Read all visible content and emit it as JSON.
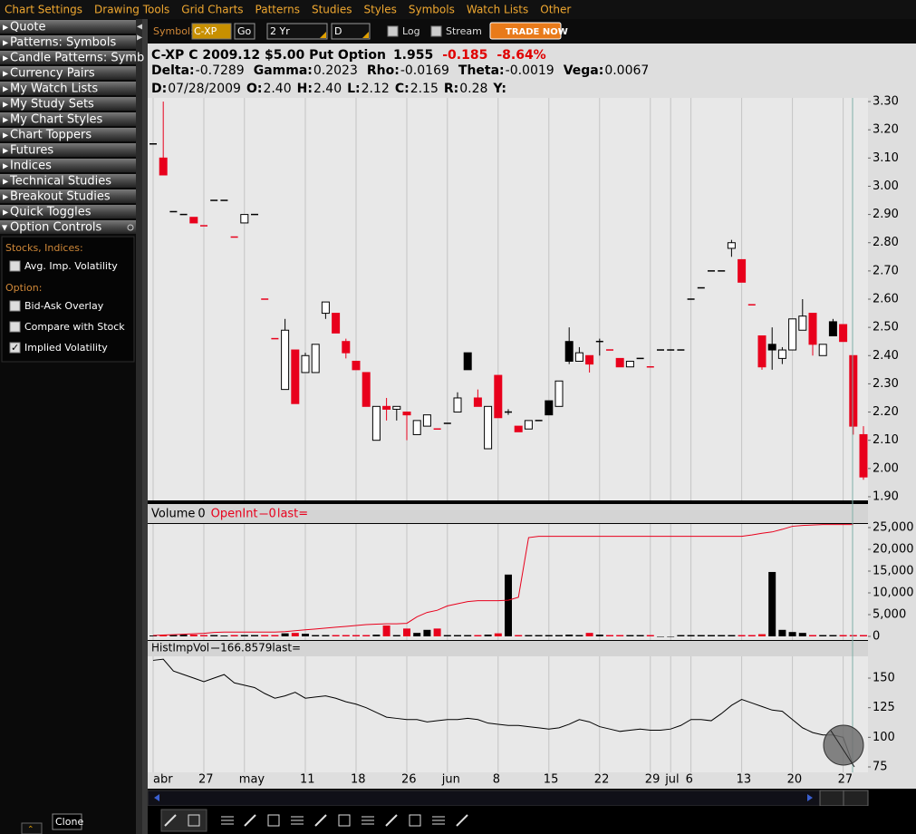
{
  "menu": [
    "Chart Settings",
    "Drawing Tools",
    "Grid Charts",
    "Patterns",
    "Studies",
    "Styles",
    "Symbols",
    "Watch Lists",
    "Other"
  ],
  "sidebar": {
    "items": [
      "Quote",
      "Patterns: Symbols",
      "Candle Patterns: Symb",
      "Currency Pairs",
      "My Watch Lists",
      "My Study Sets",
      "My Chart Styles",
      "Chart Toppers",
      "Futures",
      "Indices",
      "Technical Studies",
      "Breakout Studies",
      "Quick Toggles"
    ],
    "expanded": "Option Controls",
    "sections": [
      {
        "title": "Stocks, Indices:",
        "checks": [
          {
            "label": "Avg. Imp. Volatility",
            "checked": false
          }
        ]
      },
      {
        "title": "Option:",
        "checks": [
          {
            "label": "Bid-Ask Overlay",
            "checked": false
          },
          {
            "label": "Compare with Stock",
            "checked": false
          },
          {
            "label": "Implied Volatility",
            "checked": true
          }
        ]
      }
    ]
  },
  "toolbar": {
    "symbol_label": "Symbol:",
    "symbol": "C-XP",
    "go": "Go",
    "period": "2 Yr",
    "interval": "D",
    "log": "Log",
    "log_checked": false,
    "stream": "Stream",
    "stream_checked": false,
    "trade": "TRADE NOW"
  },
  "quote": {
    "name": "C-XP C 2009.12 $5.00 Put Option",
    "last": "1.955",
    "change": "-0.185",
    "percent": "-8.64%",
    "greeks": [
      {
        "label": "Delta:",
        "value": "-0.7289"
      },
      {
        "label": "Gamma:",
        "value": "0.2023"
      },
      {
        "label": "Rho:",
        "value": "-0.0169"
      },
      {
        "label": "Theta:",
        "value": "-0.0019"
      },
      {
        "label": "Vega:",
        "value": "0.0067"
      }
    ],
    "bar": [
      {
        "label": "D:",
        "value": "07/28/2009"
      },
      {
        "label": "O:",
        "value": "2.40"
      },
      {
        "label": "H:",
        "value": "2.40"
      },
      {
        "label": "L:",
        "value": "2.12"
      },
      {
        "label": "C:",
        "value": "2.15"
      },
      {
        "label": "R:",
        "value": "0.28"
      },
      {
        "label": "Y:"
      }
    ]
  },
  "chart_data": [
    {
      "type": "candlestick",
      "categories": [
        "abr",
        null,
        null,
        null,
        null,
        "27",
        null,
        null,
        null,
        "may",
        null,
        null,
        null,
        null,
        null,
        "11",
        null,
        null,
        null,
        null,
        "18",
        null,
        null,
        null,
        null,
        "26",
        null,
        null,
        null,
        "jun",
        null,
        null,
        null,
        null,
        "8",
        null,
        null,
        null,
        null,
        "15",
        null,
        null,
        null,
        null,
        "22",
        null,
        null,
        null,
        null,
        "29",
        null,
        "jul",
        null,
        "6",
        null,
        null,
        null,
        null,
        "13",
        null,
        null,
        null,
        null,
        "20",
        null,
        null,
        null,
        null,
        "27",
        null,
        null
      ],
      "open": [
        3.15,
        3.1,
        2.91,
        2.9,
        2.89,
        2.86,
        2.95,
        2.95,
        2.82,
        2.87,
        2.9,
        2.6,
        2.46,
        2.28,
        2.42,
        2.34,
        2.34,
        2.55,
        2.55,
        2.45,
        2.38,
        2.34,
        2.1,
        2.22,
        2.21,
        2.2,
        2.12,
        2.15,
        2.14,
        2.16,
        2.2,
        2.35,
        2.25,
        2.07,
        2.33,
        2.2,
        2.15,
        2.14,
        2.17,
        2.19,
        2.22,
        2.38,
        2.38,
        2.4,
        2.45,
        2.42,
        2.39,
        2.36,
        2.39,
        2.36,
        2.42,
        2.42,
        2.42,
        2.6,
        2.64,
        2.7,
        2.7,
        2.78,
        2.74,
        2.58,
        2.47,
        2.42,
        2.39,
        2.42,
        2.49,
        2.55,
        2.4,
        2.47,
        2.51,
        2.4,
        2.12
      ],
      "high": [
        3.15,
        3.3,
        2.91,
        2.9,
        2.89,
        2.86,
        2.95,
        2.95,
        2.82,
        2.9,
        2.9,
        2.6,
        2.46,
        2.53,
        2.42,
        2.41,
        2.44,
        2.59,
        2.55,
        2.46,
        2.38,
        2.34,
        2.22,
        2.25,
        2.22,
        2.2,
        2.17,
        2.19,
        2.14,
        2.16,
        2.27,
        2.41,
        2.28,
        2.22,
        2.33,
        2.21,
        2.15,
        2.17,
        2.17,
        2.24,
        2.31,
        2.5,
        2.43,
        2.4,
        2.46,
        2.42,
        2.39,
        2.38,
        2.39,
        2.36,
        2.42,
        2.42,
        2.42,
        2.6,
        2.64,
        2.7,
        2.7,
        2.81,
        2.74,
        2.58,
        2.47,
        2.5,
        2.43,
        2.53,
        2.6,
        2.55,
        2.44,
        2.53,
        2.51,
        2.4,
        2.15
      ],
      "low": [
        3.15,
        3.04,
        2.91,
        2.9,
        2.87,
        2.86,
        2.95,
        2.95,
        2.82,
        2.87,
        2.9,
        2.6,
        2.46,
        2.28,
        2.23,
        2.34,
        2.34,
        2.53,
        2.48,
        2.39,
        2.35,
        2.22,
        2.1,
        2.17,
        2.17,
        2.1,
        2.12,
        2.15,
        2.14,
        2.16,
        2.2,
        2.35,
        2.22,
        2.07,
        2.18,
        2.19,
        2.13,
        2.14,
        2.17,
        2.19,
        2.22,
        2.37,
        2.38,
        2.34,
        2.4,
        2.42,
        2.36,
        2.36,
        2.39,
        2.36,
        2.42,
        2.42,
        2.42,
        2.6,
        2.64,
        2.7,
        2.7,
        2.75,
        2.66,
        2.58,
        2.35,
        2.35,
        2.37,
        2.42,
        2.49,
        2.4,
        2.4,
        2.47,
        2.45,
        2.12,
        1.96
      ],
      "close": [
        3.15,
        3.04,
        2.91,
        2.9,
        2.87,
        2.86,
        2.95,
        2.95,
        2.82,
        2.9,
        2.9,
        2.6,
        2.46,
        2.49,
        2.23,
        2.4,
        2.44,
        2.59,
        2.48,
        2.41,
        2.35,
        2.22,
        2.22,
        2.21,
        2.22,
        2.19,
        2.17,
        2.19,
        2.14,
        2.16,
        2.25,
        2.41,
        2.22,
        2.22,
        2.18,
        2.2,
        2.13,
        2.17,
        2.17,
        2.24,
        2.31,
        2.45,
        2.41,
        2.37,
        2.45,
        2.42,
        2.36,
        2.38,
        2.39,
        2.36,
        2.42,
        2.42,
        2.42,
        2.6,
        2.64,
        2.7,
        2.7,
        2.8,
        2.66,
        2.58,
        2.36,
        2.44,
        2.42,
        2.53,
        2.54,
        2.44,
        2.44,
        2.52,
        2.45,
        2.15,
        1.97
      ],
      "colors": [
        "#000000",
        "#e8001c",
        "#000000",
        "#000000",
        "#e8001c",
        "#e8001c",
        "#000000",
        "#000000",
        "#e8001c",
        "#ffffff",
        "#000000",
        "#e8001c",
        "#e8001c",
        "#ffffff",
        "#e8001c",
        "#ffffff",
        "#ffffff",
        "#ffffff",
        "#e8001c",
        "#e8001c",
        "#e8001c",
        "#e8001c",
        "#ffffff",
        "#e8001c",
        "#ffffff",
        "#e8001c",
        "#ffffff",
        "#ffffff",
        "#e8001c",
        "#000000",
        "#ffffff",
        "#000000",
        "#e8001c",
        "#ffffff",
        "#e8001c",
        "#000000",
        "#e8001c",
        "#ffffff",
        "#000000",
        "#000000",
        "#ffffff",
        "#000000",
        "#ffffff",
        "#e8001c",
        "#ffffff",
        "#e8001c",
        "#e8001c",
        "#ffffff",
        "#000000",
        "#e8001c",
        "#000000",
        "#000000",
        "#000000",
        "#000000",
        "#000000",
        "#000000",
        "#000000",
        "#ffffff",
        "#e8001c",
        "#e8001c",
        "#e8001c",
        "#000000",
        "#ffffff",
        "#ffffff",
        "#ffffff",
        "#e8001c",
        "#ffffff",
        "#000000",
        "#e8001c",
        "#e8001c",
        "#e8001c"
      ],
      "outline_color": "#000000",
      "ylim": [
        1.887,
        3.313
      ],
      "yticks": [
        {
          "value": 1.9,
          "label": "1.90"
        },
        {
          "value": 2.0,
          "label": "2.00"
        },
        {
          "value": 2.1,
          "label": "2.10"
        },
        {
          "value": 2.2,
          "label": "2.20"
        },
        {
          "value": 2.3,
          "label": "2.30"
        },
        {
          "value": 2.4,
          "label": "2.40"
        },
        {
          "value": 2.5,
          "label": "2.50"
        },
        {
          "value": 2.6,
          "label": "2.60"
        },
        {
          "value": 2.7,
          "label": "2.70"
        },
        {
          "value": 2.8,
          "label": "2.80"
        },
        {
          "value": 2.9,
          "label": "2.90"
        },
        {
          "value": 3.0,
          "label": "3.00"
        },
        {
          "value": 3.1,
          "label": "3.10"
        },
        {
          "value": 3.2,
          "label": "3.20"
        },
        {
          "value": 3.3,
          "label": "3.30"
        }
      ],
      "grid": true
    },
    {
      "type": "bar",
      "series": [
        {
          "name": "Volume",
          "legend_value": "0",
          "values": [
            200,
            300,
            300,
            400,
            400,
            300,
            300,
            200,
            300,
            300,
            300,
            300,
            300,
            700,
            800,
            600,
            300,
            300,
            300,
            300,
            300,
            300,
            400,
            2500,
            300,
            1800,
            800,
            1500,
            1800,
            300,
            300,
            300,
            300,
            400,
            700,
            14200,
            300,
            300,
            300,
            300,
            300,
            400,
            300,
            800,
            400,
            300,
            300,
            300,
            300,
            300,
            0,
            0,
            300,
            300,
            300,
            300,
            300,
            300,
            300,
            300,
            500,
            14800,
            1500,
            1000,
            800,
            300,
            300,
            300,
            300,
            300,
            300
          ]
        },
        {
          "name": "OpenInt",
          "type": "line",
          "color": "#e8001c",
          "legend_value": "0",
          "values": [
            200,
            300,
            400,
            500,
            600,
            700,
            900,
            1000,
            1000,
            1000,
            1000,
            1000,
            1000,
            1100,
            1300,
            1500,
            1700,
            1900,
            2100,
            2300,
            2500,
            2700,
            2800,
            2900,
            2900,
            3000,
            4500,
            5500,
            6000,
            7000,
            7500,
            8000,
            8200,
            8200,
            8200,
            8300,
            9000,
            22700,
            23000,
            23000,
            23000,
            23000,
            23000,
            23000,
            23000,
            23000,
            23000,
            23000,
            23000,
            23000,
            23000,
            23000,
            23000,
            23000,
            23000,
            23000,
            23000,
            23000,
            23000,
            23300,
            23700,
            24000,
            24600,
            25300,
            25500,
            25600,
            25700,
            25700,
            25700,
            25700,
            null
          ]
        }
      ],
      "last_label": "last=",
      "ylim": [
        -833,
        25833
      ],
      "yticks": [
        0,
        {
          "value": 5000,
          "label": "5,000"
        },
        {
          "value": 10000,
          "label": "10,000"
        },
        {
          "value": 15000,
          "label": "15,000"
        },
        {
          "value": 20000,
          "label": "20,000"
        },
        {
          "value": 25000,
          "label": "25,000"
        }
      ]
    },
    {
      "type": "line",
      "title": "HistImpVol",
      "title_value": "166.8579",
      "last_label": "last=",
      "color": "#000000",
      "values": [
        165,
        166,
        156,
        153,
        150,
        147,
        150,
        153,
        146,
        144,
        142,
        137,
        133,
        135,
        138,
        133,
        134,
        135,
        133,
        130,
        128,
        125,
        121,
        117,
        116,
        115,
        115,
        113,
        114,
        115,
        115,
        116,
        115,
        112,
        111,
        110,
        110,
        109,
        108,
        107,
        108,
        111,
        115,
        113,
        109,
        107,
        105,
        106,
        107,
        106,
        106,
        107,
        110,
        115,
        115,
        114,
        120,
        127,
        132,
        129,
        126,
        123,
        122,
        115,
        108,
        104,
        102,
        102,
        100,
        76,
        null
      ],
      "ylim": [
        70.4,
        168.4
      ],
      "yticks": [
        75,
        100,
        125,
        150
      ]
    }
  ],
  "footer": {
    "clone": "Clone"
  }
}
